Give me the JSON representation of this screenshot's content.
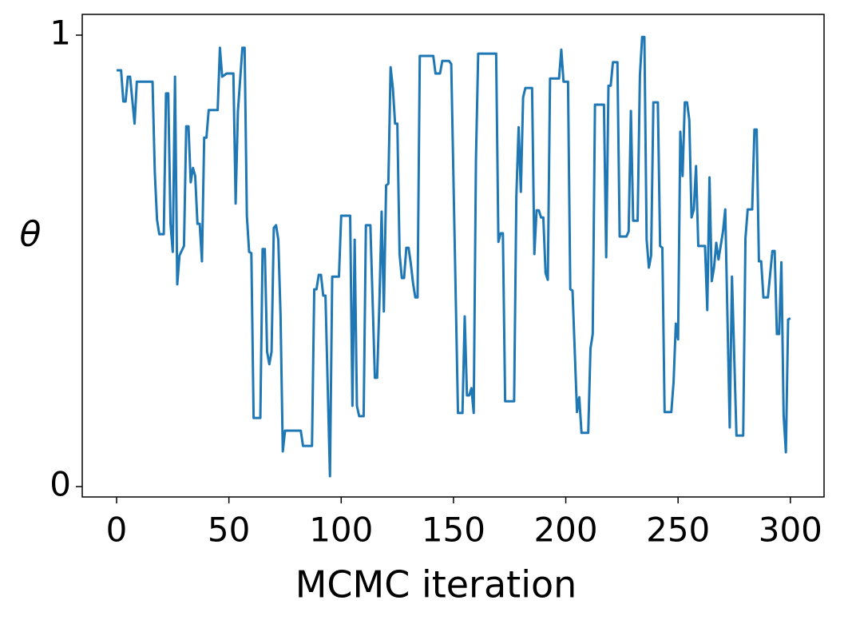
{
  "chart_data": {
    "type": "line",
    "xlabel": "MCMC iteration",
    "ylabel": "θ",
    "color": "#1f77b4",
    "xlim": [
      -15.3,
      315
    ],
    "ylim": [
      -0.023,
      1.046
    ],
    "xticks": [
      0,
      50,
      100,
      150,
      200,
      250,
      300
    ],
    "yticks": [
      0,
      1
    ],
    "x": [
      0,
      2,
      3,
      4,
      5,
      6,
      8,
      9,
      16,
      17,
      18,
      19,
      21,
      22,
      23,
      24,
      25,
      26,
      27,
      28,
      30,
      31,
      32,
      33,
      34,
      35,
      36,
      37,
      38,
      39,
      40,
      41,
      45,
      46,
      47,
      49,
      52,
      53,
      54,
      56,
      57,
      58,
      59,
      60,
      61,
      64,
      65,
      66,
      67,
      68,
      69,
      70,
      71,
      72,
      73,
      74,
      75,
      82,
      83,
      87,
      88,
      89,
      90,
      91,
      92,
      93,
      95,
      96,
      99,
      100,
      104,
      105,
      106,
      107,
      108,
      110,
      111,
      113,
      115,
      116,
      117,
      118,
      119,
      120,
      121,
      122,
      123,
      124,
      125,
      126,
      127,
      128,
      129,
      130,
      131,
      132,
      133,
      134,
      135,
      141,
      142,
      144,
      145,
      148,
      149,
      152,
      154,
      155,
      156,
      157,
      158,
      159,
      160,
      161,
      169,
      170,
      171,
      172,
      173,
      177,
      178,
      179,
      180,
      181,
      182,
      185,
      186,
      187,
      188,
      189,
      190,
      191,
      192,
      193,
      197,
      198,
      199,
      201,
      202,
      203,
      205,
      206,
      207,
      210,
      211,
      212,
      213,
      217,
      218,
      219,
      220,
      221,
      223,
      224,
      227,
      228,
      229,
      230,
      232,
      233,
      234,
      235,
      236,
      237,
      238,
      239,
      241,
      242,
      243,
      244,
      247,
      248,
      249,
      250,
      251,
      252,
      253,
      254,
      255,
      256,
      257,
      258,
      259,
      262,
      263,
      264,
      265,
      266,
      267,
      268,
      270,
      271,
      273,
      274,
      276,
      279,
      280,
      281,
      283,
      284,
      285,
      286,
      287,
      288,
      290,
      292,
      293,
      294,
      295,
      296,
      297,
      298,
      299,
      300
    ],
    "values": [
      0.922,
      0.922,
      0.853,
      0.853,
      0.908,
      0.908,
      0.804,
      0.897,
      0.897,
      0.697,
      0.591,
      0.559,
      0.559,
      0.871,
      0.871,
      0.582,
      0.52,
      0.908,
      0.448,
      0.512,
      0.533,
      0.798,
      0.798,
      0.674,
      0.706,
      0.688,
      0.582,
      0.582,
      0.499,
      0.773,
      0.773,
      0.834,
      0.834,
      0.972,
      0.908,
      0.915,
      0.915,
      0.627,
      0.83,
      0.972,
      0.972,
      0.6,
      0.52,
      0.517,
      0.152,
      0.152,
      0.526,
      0.526,
      0.299,
      0.271,
      0.299,
      0.573,
      0.579,
      0.547,
      0.379,
      0.078,
      0.124,
      0.124,
      0.09,
      0.09,
      0.437,
      0.437,
      0.469,
      0.469,
      0.423,
      0.423,
      0.023,
      0.465,
      0.465,
      0.6,
      0.6,
      0.179,
      0.547,
      0.179,
      0.156,
      0.156,
      0.579,
      0.579,
      0.241,
      0.241,
      0.405,
      0.609,
      0.388,
      0.667,
      0.671,
      0.929,
      0.883,
      0.804,
      0.804,
      0.515,
      0.462,
      0.462,
      0.529,
      0.529,
      0.494,
      0.45,
      0.419,
      0.419,
      0.954,
      0.954,
      0.915,
      0.915,
      0.943,
      0.943,
      0.936,
      0.163,
      0.163,
      0.377,
      0.202,
      0.202,
      0.218,
      0.163,
      0.724,
      0.959,
      0.959,
      0.542,
      0.561,
      0.561,
      0.189,
      0.189,
      0.644,
      0.796,
      0.653,
      0.862,
      0.883,
      0.883,
      0.515,
      0.612,
      0.612,
      0.596,
      0.596,
      0.473,
      0.458,
      0.904,
      0.904,
      0.968,
      0.897,
      0.897,
      0.437,
      0.434,
      0.165,
      0.198,
      0.119,
      0.119,
      0.306,
      0.338,
      0.846,
      0.846,
      0.508,
      0.888,
      0.888,
      0.94,
      0.94,
      0.554,
      0.554,
      0.565,
      0.832,
      0.589,
      0.589,
      0.91,
      0.996,
      0.996,
      0.547,
      0.485,
      0.512,
      0.851,
      0.851,
      0.533,
      0.529,
      0.165,
      0.165,
      0.232,
      0.361,
      0.326,
      0.786,
      0.688,
      0.851,
      0.851,
      0.812,
      0.596,
      0.614,
      0.71,
      0.533,
      0.533,
      0.391,
      0.685,
      0.455,
      0.485,
      0.54,
      0.503,
      0.565,
      0.614,
      0.131,
      0.465,
      0.113,
      0.113,
      0.55,
      0.614,
      0.614,
      0.791,
      0.791,
      0.499,
      0.499,
      0.419,
      0.419,
      0.522,
      0.522,
      0.338,
      0.338,
      0.497,
      0.158,
      0.076,
      0.37,
      0.373
    ]
  }
}
